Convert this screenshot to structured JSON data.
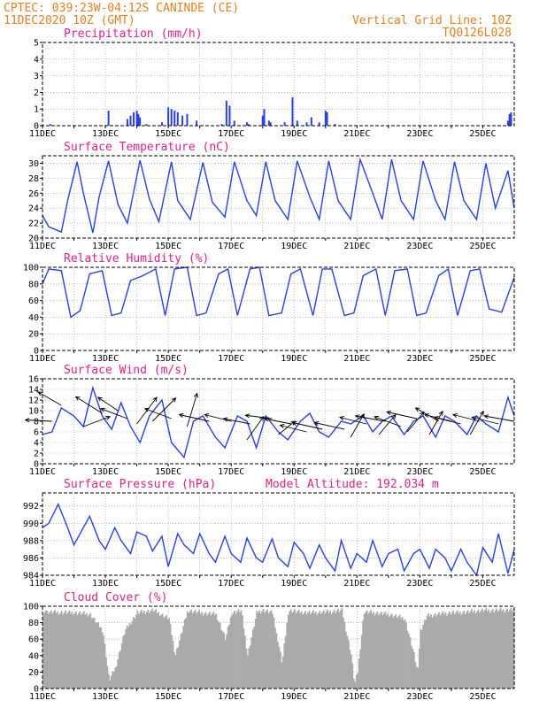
{
  "header": {
    "line1": "CPTEC:   039:23W-04:12S   CANINDE (CE)",
    "line2": "11DEC2020 10Z (GMT)",
    "grid_note": "Vertical Grid Line: 10Z",
    "code": "TQ0126L028"
  },
  "colors": {
    "header": "#e08020",
    "title": "#e0208a",
    "series": "#2a3fe0",
    "cloud": "#aaaaaa"
  },
  "x_ticks": [
    "11DEC",
    "13DEC",
    "15DEC",
    "17DEC",
    "19DEC",
    "21DEC",
    "23DEC",
    "25DEC"
  ],
  "chart_data": [
    {
      "type": "bar",
      "title": "Precipitation (mm/h)",
      "ylim": [
        0,
        5
      ],
      "yticks": [
        "0",
        "1",
        "2",
        "3",
        "4",
        "5"
      ],
      "x": [
        11.25,
        13.1,
        13.7,
        13.8,
        13.9,
        14.0,
        14.05,
        14.1,
        14.3,
        14.8,
        15.0,
        15.1,
        15.2,
        15.3,
        15.45,
        15.6,
        15.9,
        16.7,
        16.85,
        16.95,
        17.1,
        17.5,
        17.55,
        18.0,
        18.05,
        18.2,
        18.25,
        18.7,
        18.95,
        19.1,
        19.4,
        19.55,
        19.8,
        20.0,
        20.05,
        20.3,
        25.8,
        25.85,
        25.9
      ],
      "values": [
        0.1,
        0.9,
        0.4,
        0.6,
        0.8,
        0.9,
        0.7,
        0.5,
        0.1,
        0.2,
        1.1,
        1.0,
        0.9,
        0.8,
        0.6,
        0.7,
        0.3,
        0.1,
        1.5,
        1.2,
        0.3,
        0.2,
        0.1,
        0.6,
        1.0,
        0.3,
        0.2,
        0.2,
        1.7,
        0.3,
        0.2,
        0.5,
        0.2,
        0.9,
        0.8,
        0.1,
        0.3,
        0.7,
        0.8
      ]
    },
    {
      "type": "line",
      "title": "Surface Temperature (nC)",
      "ylim": [
        20,
        31
      ],
      "yticks": [
        "20",
        "22",
        "24",
        "26",
        "28",
        "30"
      ],
      "x": [
        11.0,
        11.2,
        11.6,
        11.8,
        12.1,
        12.3,
        12.6,
        12.8,
        13.1,
        13.4,
        13.7,
        14.1,
        14.4,
        14.7,
        15.1,
        15.3,
        15.7,
        16.1,
        16.4,
        16.8,
        17.1,
        17.5,
        17.8,
        18.1,
        18.4,
        18.8,
        19.1,
        19.5,
        19.8,
        20.1,
        20.4,
        20.8,
        21.1,
        21.5,
        21.8,
        22.1,
        22.4,
        22.8,
        23.1,
        23.5,
        23.8,
        24.1,
        24.4,
        24.8,
        25.1,
        25.4,
        25.8,
        26.0
      ],
      "values": [
        23.0,
        21.5,
        20.8,
        25.0,
        30.2,
        26.0,
        20.7,
        25.5,
        30.3,
        24.5,
        22.0,
        30.4,
        25.2,
        22.2,
        30.2,
        25.0,
        22.5,
        30.1,
        24.8,
        22.8,
        30.2,
        25.0,
        23.0,
        30.2,
        25.0,
        22.5,
        30.3,
        25.5,
        22.5,
        30.3,
        25.0,
        22.5,
        30.5,
        26.0,
        22.5,
        30.5,
        25.0,
        22.5,
        30.3,
        25.0,
        22.5,
        30.2,
        25.0,
        22.5,
        30.0,
        24.0,
        29.0,
        24.0
      ]
    },
    {
      "type": "line",
      "title": "Relative Humidity (%)",
      "ylim": [
        0,
        100
      ],
      "yticks": [
        "0",
        "20",
        "40",
        "60",
        "80",
        "100"
      ],
      "x": [
        11.0,
        11.2,
        11.6,
        11.9,
        12.2,
        12.5,
        12.9,
        13.2,
        13.5,
        13.8,
        14.2,
        14.6,
        14.9,
        15.2,
        15.6,
        15.9,
        16.2,
        16.6,
        16.9,
        17.2,
        17.6,
        17.9,
        18.2,
        18.6,
        18.9,
        19.2,
        19.6,
        19.9,
        20.2,
        20.6,
        20.9,
        21.2,
        21.6,
        21.9,
        22.2,
        22.6,
        22.9,
        23.2,
        23.6,
        23.9,
        24.2,
        24.6,
        24.9,
        25.2,
        25.6,
        26.0
      ],
      "values": [
        80,
        98,
        96,
        40,
        48,
        92,
        96,
        42,
        45,
        84,
        90,
        98,
        42,
        98,
        100,
        42,
        45,
        92,
        98,
        42,
        98,
        100,
        42,
        45,
        92,
        98,
        42,
        98,
        98,
        42,
        45,
        90,
        98,
        42,
        96,
        98,
        42,
        45,
        90,
        98,
        42,
        96,
        98,
        50,
        46,
        88
      ]
    },
    {
      "type": "line",
      "title": "Surface Wind (m/s)",
      "ylim": [
        0,
        16
      ],
      "yticks": [
        "0",
        "2",
        "4",
        "6",
        "8",
        "10",
        "12",
        "14",
        "16"
      ],
      "x": [
        11.0,
        11.3,
        11.6,
        12.0,
        12.3,
        12.6,
        12.9,
        13.2,
        13.5,
        13.8,
        14.1,
        14.4,
        14.8,
        15.1,
        15.5,
        15.8,
        16.1,
        16.5,
        16.8,
        17.2,
        17.5,
        17.8,
        18.1,
        18.5,
        18.8,
        19.2,
        19.5,
        19.8,
        20.1,
        20.5,
        20.8,
        21.2,
        21.5,
        21.8,
        22.1,
        22.5,
        22.8,
        23.1,
        23.5,
        23.8,
        24.1,
        24.5,
        24.8,
        25.1,
        25.5,
        25.8,
        26.0
      ],
      "values": [
        5.5,
        6.0,
        10.5,
        9.0,
        7.0,
        14.3,
        9.0,
        6.5,
        11.5,
        7.0,
        4.0,
        9.0,
        12.0,
        4.0,
        1.2,
        8.0,
        9.0,
        5.0,
        3.0,
        9.0,
        8.0,
        3.0,
        9.0,
        6.0,
        4.5,
        8.0,
        9.5,
        6.0,
        5.0,
        8.0,
        7.5,
        9.0,
        6.0,
        8.0,
        9.0,
        5.5,
        8.0,
        9.0,
        5.0,
        9.0,
        8.0,
        5.5,
        9.0,
        7.5,
        6.0,
        12.5,
        9.0
      ],
      "arrows": [
        {
          "x": 11.3,
          "y": 8.0,
          "u": -4.0,
          "v": 0.2
        },
        {
          "x": 11.6,
          "y": 11.0,
          "u": -3.5,
          "v": 2.0
        },
        {
          "x": 12.3,
          "y": 7.0,
          "u": 4.0,
          "v": 1.5
        },
        {
          "x": 12.9,
          "y": 9.5,
          "u": -4.0,
          "v": 2.5
        },
        {
          "x": 13.4,
          "y": 10.0,
          "u": -3.0,
          "v": 2.0
        },
        {
          "x": 13.7,
          "y": 8.5,
          "u": -4.0,
          "v": 1.5
        },
        {
          "x": 14.0,
          "y": 7.5,
          "u": 3.0,
          "v": 4.0
        },
        {
          "x": 14.5,
          "y": 8.0,
          "u": 3.5,
          "v": 3.5
        },
        {
          "x": 15.1,
          "y": 8.5,
          "u": -4.0,
          "v": 1.5
        },
        {
          "x": 15.6,
          "y": 7.0,
          "u": 1.5,
          "v": 5.0
        },
        {
          "x": 16.3,
          "y": 8.0,
          "u": -4.5,
          "v": 1.0
        },
        {
          "x": 17.0,
          "y": 8.0,
          "u": -4.0,
          "v": 1.0
        },
        {
          "x": 17.6,
          "y": 7.5,
          "u": -4.0,
          "v": 0.8
        },
        {
          "x": 18.3,
          "y": 8.5,
          "u": -4.0,
          "v": 0.5
        },
        {
          "x": 18.9,
          "y": 7.5,
          "u": -4.0,
          "v": 0.8
        },
        {
          "x": 17.5,
          "y": 4.5,
          "u": 2.5,
          "v": 3.5
        },
        {
          "x": 18.5,
          "y": 5.5,
          "u": 2.5,
          "v": 2.0
        },
        {
          "x": 19.4,
          "y": 6.0,
          "u": -4.0,
          "v": 1.0
        },
        {
          "x": 19.9,
          "y": 6.5,
          "u": -4.5,
          "v": 1.0
        },
        {
          "x": 20.6,
          "y": 6.5,
          "u": -4.5,
          "v": 1.0
        },
        {
          "x": 21.3,
          "y": 7.5,
          "u": -4.0,
          "v": 1.0
        },
        {
          "x": 21.9,
          "y": 8.0,
          "u": -4.5,
          "v": 0.8
        },
        {
          "x": 20.8,
          "y": 5.0,
          "u": 2.0,
          "v": 3.5
        },
        {
          "x": 21.7,
          "y": 5.5,
          "u": 2.5,
          "v": 3.0
        },
        {
          "x": 22.4,
          "y": 7.0,
          "u": -4.0,
          "v": 1.5
        },
        {
          "x": 22.9,
          "y": 8.5,
          "u": -4.5,
          "v": 1.0
        },
        {
          "x": 23.6,
          "y": 8.0,
          "u": -3.5,
          "v": 2.0
        },
        {
          "x": 24.0,
          "y": 8.0,
          "u": -4.0,
          "v": 1.0
        },
        {
          "x": 22.6,
          "y": 6.0,
          "u": 2.5,
          "v": 3.0
        },
        {
          "x": 23.3,
          "y": 5.5,
          "u": 2.0,
          "v": 3.5
        },
        {
          "x": 24.3,
          "y": 7.5,
          "u": -4.0,
          "v": 1.0
        },
        {
          "x": 24.9,
          "y": 8.0,
          "u": -4.0,
          "v": 1.0
        },
        {
          "x": 25.5,
          "y": 7.5,
          "u": -4.0,
          "v": 1.0
        },
        {
          "x": 26.0,
          "y": 8.0,
          "u": -4.5,
          "v": 0.8
        },
        {
          "x": 24.6,
          "y": 5.5,
          "u": 2.0,
          "v": 3.5
        }
      ]
    },
    {
      "type": "line",
      "title": "Surface Pressure (hPa)",
      "subtitle": "Model Altitude: 192.034 m",
      "ylim": [
        984,
        993.5
      ],
      "yticks": [
        "984",
        "986",
        "988",
        "990",
        "992"
      ],
      "x": [
        11.0,
        11.2,
        11.5,
        11.8,
        12.0,
        12.3,
        12.5,
        12.8,
        13.0,
        13.3,
        13.5,
        13.8,
        14.0,
        14.3,
        14.5,
        14.8,
        15.0,
        15.3,
        15.5,
        15.8,
        16.0,
        16.3,
        16.5,
        16.8,
        17.0,
        17.3,
        17.5,
        17.8,
        18.0,
        18.3,
        18.5,
        18.8,
        19.0,
        19.3,
        19.5,
        19.8,
        20.0,
        20.3,
        20.5,
        20.8,
        21.0,
        21.3,
        21.5,
        21.8,
        22.0,
        22.3,
        22.5,
        22.8,
        23.0,
        23.3,
        23.5,
        23.8,
        24.0,
        24.3,
        24.5,
        24.8,
        25.0,
        25.3,
        25.5,
        25.8,
        26.0
      ],
      "values": [
        989.5,
        990.0,
        992.2,
        989.5,
        987.5,
        989.5,
        990.8,
        988.0,
        987.0,
        989.5,
        988.0,
        986.5,
        989.0,
        988.5,
        986.8,
        988.5,
        985.0,
        988.8,
        987.5,
        986.5,
        988.8,
        986.5,
        985.5,
        988.5,
        986.5,
        985.5,
        988.3,
        986.0,
        985.5,
        988.2,
        986.0,
        985.0,
        987.8,
        986.5,
        984.8,
        987.5,
        986.0,
        984.5,
        988.0,
        984.8,
        986.5,
        985.5,
        988.0,
        985.0,
        986.5,
        987.0,
        984.5,
        986.5,
        987.0,
        984.8,
        987.0,
        986.0,
        984.5,
        987.0,
        985.5,
        984.0,
        987.2,
        985.5,
        988.8,
        984.2,
        987.0
      ]
    },
    {
      "type": "bar",
      "title": "Cloud Cover (%)",
      "ylim": [
        0,
        100
      ],
      "yticks": [
        "0",
        "20",
        "40",
        "60",
        "80",
        "100"
      ],
      "x": [
        11.0,
        12.0,
        12.5,
        12.9,
        13.1,
        13.3,
        13.6,
        14.0,
        14.5,
        15.0,
        15.2,
        15.6,
        16.0,
        16.5,
        16.8,
        17.0,
        17.3,
        17.5,
        17.8,
        18.0,
        18.3,
        18.6,
        18.8,
        19.1,
        19.5,
        20.0,
        20.5,
        20.8,
        20.9,
        21.0,
        21.2,
        21.5,
        22.0,
        22.5,
        22.8,
        22.9,
        23.0,
        23.2,
        23.5,
        24.0,
        24.5,
        25.0,
        25.5,
        26.0
      ],
      "values": [
        93,
        92,
        90,
        70,
        10,
        25,
        70,
        92,
        95,
        85,
        40,
        95,
        92,
        90,
        60,
        92,
        95,
        40,
        93,
        95,
        92,
        30,
        95,
        93,
        92,
        93,
        95,
        40,
        5,
        20,
        93,
        92,
        90,
        85,
        40,
        20,
        70,
        88,
        90,
        92,
        93,
        95,
        95,
        96
      ]
    }
  ]
}
